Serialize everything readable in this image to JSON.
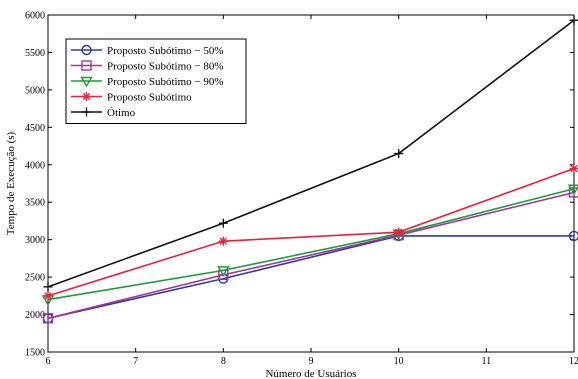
{
  "chart_data": {
    "type": "line",
    "x": [
      6,
      8,
      10,
      12
    ],
    "xlabel": "Número de Usuários",
    "ylabel": "Tempo de Execução (s)",
    "xlim": [
      6,
      12
    ],
    "ylim": [
      1500,
      6000
    ],
    "xticks": [
      "6",
      "7",
      "8",
      "9",
      "10",
      "11",
      "12"
    ],
    "yticks": [
      "1500",
      "2000",
      "2500",
      "3000",
      "3500",
      "4000",
      "4500",
      "5000",
      "5500",
      "6000"
    ],
    "grid": false,
    "legend_position": "top-left",
    "series": [
      {
        "name": "Proposto Subótimo − 50%",
        "values": [
          1950,
          2480,
          3050,
          3050
        ],
        "color": "#2e3a9e",
        "marker": "circle"
      },
      {
        "name": "Proposto Subótimo − 80%",
        "values": [
          1950,
          2530,
          3060,
          3630
        ],
        "color": "#a5359a",
        "marker": "square"
      },
      {
        "name": "Proposto Subótimo − 90%",
        "values": [
          2200,
          2590,
          3080,
          3680
        ],
        "color": "#1d9b3b",
        "marker": "triangle-down"
      },
      {
        "name": "Proposto Subótimo",
        "values": [
          2250,
          2980,
          3100,
          3950
        ],
        "color": "#e8213c",
        "marker": "asterisk"
      },
      {
        "name": "Ótimo",
        "values": [
          2370,
          3220,
          4150,
          5930
        ],
        "color": "#111111",
        "marker": "plus"
      }
    ]
  }
}
